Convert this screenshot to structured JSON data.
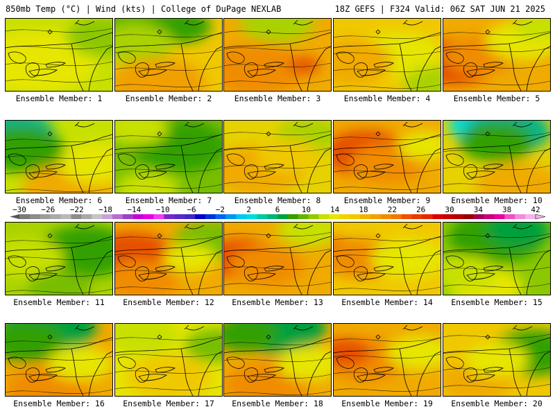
{
  "header": {
    "left": "850mb Temp (°C) | Wind (kts) | College of DuPage NEXLAB",
    "right": "18Z GEFS | F324 Valid: 06Z SAT JUN 21 2025"
  },
  "panels": [
    {
      "label": "Ensemble Member: 1",
      "base": "#c8e000",
      "blobs": [
        [
          "#e6e600",
          0.3,
          0.6,
          0.55
        ],
        [
          "#8cc800",
          0.92,
          0.25,
          0.35
        ]
      ]
    },
    {
      "label": "Ensemble Member: 2",
      "base": "#f0c800",
      "blobs": [
        [
          "#64b400",
          0.1,
          0.1,
          0.4
        ],
        [
          "#32a000",
          0.6,
          0.1,
          0.3
        ],
        [
          "#aad200",
          0.2,
          0.35,
          0.35
        ],
        [
          "#f0a000",
          0.4,
          0.9,
          0.45
        ]
      ]
    },
    {
      "label": "Ensemble Member: 3",
      "base": "#f0aa00",
      "blobs": [
        [
          "#aad200",
          0.5,
          0.05,
          0.35
        ],
        [
          "#f08c00",
          0.3,
          0.7,
          0.45
        ],
        [
          "#e65000",
          0.75,
          0.65,
          0.15
        ]
      ]
    },
    {
      "label": "Ensemble Member: 4",
      "base": "#f0c800",
      "blobs": [
        [
          "#e6e600",
          0.6,
          0.5,
          0.4
        ],
        [
          "#f0aa00",
          0.15,
          0.6,
          0.4
        ],
        [
          "#aad200",
          0.95,
          0.9,
          0.3
        ]
      ]
    },
    {
      "label": "Ensemble Member: 5",
      "base": "#f0aa00",
      "blobs": [
        [
          "#e65000",
          0.1,
          0.6,
          0.4
        ],
        [
          "#f08c00",
          0.35,
          0.5,
          0.35
        ],
        [
          "#e6e600",
          0.75,
          0.3,
          0.35
        ],
        [
          "#c8e000",
          0.9,
          0.1,
          0.25
        ]
      ]
    },
    {
      "label": "Ensemble Member: 6",
      "base": "#c8e000",
      "blobs": [
        [
          "#00b48c",
          0.1,
          0.15,
          0.35
        ],
        [
          "#32a000",
          0.15,
          0.4,
          0.4
        ],
        [
          "#f0aa00",
          0.6,
          0.95,
          0.45
        ],
        [
          "#e6e600",
          0.85,
          0.6,
          0.35
        ]
      ]
    },
    {
      "label": "Ensemble Member: 7",
      "base": "#78be00",
      "blobs": [
        [
          "#32a000",
          0.6,
          0.35,
          0.45
        ],
        [
          "#c8e000",
          0.2,
          0.1,
          0.3
        ],
        [
          "#c8e000",
          0.3,
          0.95,
          0.3
        ]
      ]
    },
    {
      "label": "Ensemble Member: 8",
      "base": "#e6d200",
      "blobs": [
        [
          "#f0aa00",
          0.3,
          0.7,
          0.45
        ],
        [
          "#aad200",
          0.8,
          0.2,
          0.3
        ],
        [
          "#f0c800",
          0.6,
          0.5,
          0.3
        ]
      ]
    },
    {
      "label": "Ensemble Member: 9",
      "base": "#f0aa00",
      "blobs": [
        [
          "#e65000",
          0.3,
          0.45,
          0.4
        ],
        [
          "#f08c00",
          0.5,
          0.6,
          0.35
        ],
        [
          "#e6e600",
          0.85,
          0.35,
          0.25
        ]
      ]
    },
    {
      "label": "Ensemble Member: 10",
      "base": "#e6d200",
      "blobs": [
        [
          "#00dcdc",
          0.4,
          0.05,
          0.35
        ],
        [
          "#00b48c",
          0.6,
          0.15,
          0.4
        ],
        [
          "#32a000",
          0.5,
          0.3,
          0.35
        ],
        [
          "#f0aa00",
          0.7,
          0.9,
          0.4
        ]
      ]
    },
    {
      "label": "Ensemble Member: 11",
      "base": "#aad200",
      "blobs": [
        [
          "#32a000",
          0.75,
          0.4,
          0.45
        ],
        [
          "#c8e000",
          0.2,
          0.5,
          0.35
        ],
        [
          "#78be00",
          0.5,
          0.9,
          0.3
        ]
      ]
    },
    {
      "label": "Ensemble Member: 12",
      "base": "#f0aa00",
      "blobs": [
        [
          "#e65000",
          0.15,
          0.45,
          0.4
        ],
        [
          "#f08c00",
          0.25,
          0.8,
          0.35
        ],
        [
          "#78be00",
          0.9,
          0.25,
          0.35
        ],
        [
          "#e6e600",
          0.7,
          0.5,
          0.25
        ]
      ]
    },
    {
      "label": "Ensemble Member: 13",
      "base": "#f0aa00",
      "blobs": [
        [
          "#e65000",
          0.15,
          0.5,
          0.35
        ],
        [
          "#f08c00",
          0.4,
          0.6,
          0.35
        ],
        [
          "#c8e000",
          0.8,
          0.1,
          0.3
        ]
      ]
    },
    {
      "label": "Ensemble Member: 14",
      "base": "#f0c800",
      "blobs": [
        [
          "#e65000",
          0.05,
          0.45,
          0.3
        ],
        [
          "#f08c00",
          0.25,
          0.5,
          0.35
        ],
        [
          "#e6e600",
          0.7,
          0.5,
          0.35
        ]
      ]
    },
    {
      "label": "Ensemble Member: 15",
      "base": "#8cc800",
      "blobs": [
        [
          "#32a000",
          0.5,
          0.2,
          0.45
        ],
        [
          "#00a03c",
          0.7,
          0.1,
          0.3
        ],
        [
          "#e6e600",
          0.4,
          0.9,
          0.35
        ],
        [
          "#c8e000",
          0.2,
          0.7,
          0.3
        ]
      ]
    },
    {
      "label": "Ensemble Member: 16",
      "base": "#f0aa00",
      "blobs": [
        [
          "#00a03c",
          0.4,
          0.05,
          0.45
        ],
        [
          "#32a000",
          0.2,
          0.25,
          0.35
        ],
        [
          "#f08c00",
          0.4,
          0.9,
          0.4
        ],
        [
          "#e6e600",
          0.7,
          0.55,
          0.3
        ]
      ]
    },
    {
      "label": "Ensemble Member: 17",
      "base": "#e6e600",
      "blobs": [
        [
          "#c8e000",
          0.25,
          0.15,
          0.35
        ],
        [
          "#f0c800",
          0.5,
          0.75,
          0.4
        ],
        [
          "#78be00",
          0.95,
          0.3,
          0.3
        ]
      ]
    },
    {
      "label": "Ensemble Member: 18",
      "base": "#f0aa00",
      "blobs": [
        [
          "#00a03c",
          0.5,
          0.05,
          0.45
        ],
        [
          "#32a000",
          0.2,
          0.15,
          0.3
        ],
        [
          "#f08c00",
          0.4,
          0.85,
          0.4
        ],
        [
          "#e6e600",
          0.8,
          0.55,
          0.3
        ]
      ]
    },
    {
      "label": "Ensemble Member: 19",
      "base": "#f0aa00",
      "blobs": [
        [
          "#f08c00",
          0.3,
          0.5,
          0.4
        ],
        [
          "#e65000",
          0.1,
          0.4,
          0.25
        ],
        [
          "#e6e600",
          0.8,
          0.4,
          0.3
        ]
      ]
    },
    {
      "label": "Ensemble Member: 20",
      "base": "#f0c800",
      "blobs": [
        [
          "#32a000",
          0.85,
          0.4,
          0.4
        ],
        [
          "#f0aa00",
          0.3,
          0.8,
          0.35
        ],
        [
          "#e6e600",
          0.5,
          0.5,
          0.3
        ]
      ]
    }
  ],
  "colorbar": {
    "labels": [
      "−30",
      "−26",
      "−22",
      "−18",
      "−14",
      "−10",
      "−6",
      "−2",
      "2",
      "6",
      "10",
      "14",
      "18",
      "22",
      "26",
      "30",
      "34",
      "38",
      "42"
    ],
    "colors": [
      "#7a7a7a",
      "#8c8c8c",
      "#9c9c9c",
      "#aaaaaa",
      "#b9b9b9",
      "#8c8c8c",
      "#a8a8a8",
      "#c4c4c4",
      "#c9a0dc",
      "#b46ed2",
      "#a03cc8",
      "#c800dc",
      "#e600e6",
      "#f03cf0",
      "#7828c8",
      "#5a28c8",
      "#3c28c8",
      "#0000c8",
      "#0032dc",
      "#0064f0",
      "#0096f0",
      "#00c8f0",
      "#00dcdc",
      "#00c8a0",
      "#00b478",
      "#00a03c",
      "#32a000",
      "#64b400",
      "#96c800",
      "#c8e000",
      "#e6e600",
      "#f0d200",
      "#f0c800",
      "#f0b400",
      "#f0a000",
      "#f08c00",
      "#f07800",
      "#f05000",
      "#e63c00",
      "#e62800",
      "#dc0000",
      "#c80000",
      "#b40000",
      "#960000",
      "#a00050",
      "#c80078",
      "#e600a0",
      "#f050c8",
      "#f08cdc",
      "#f0b4e6"
    ]
  }
}
